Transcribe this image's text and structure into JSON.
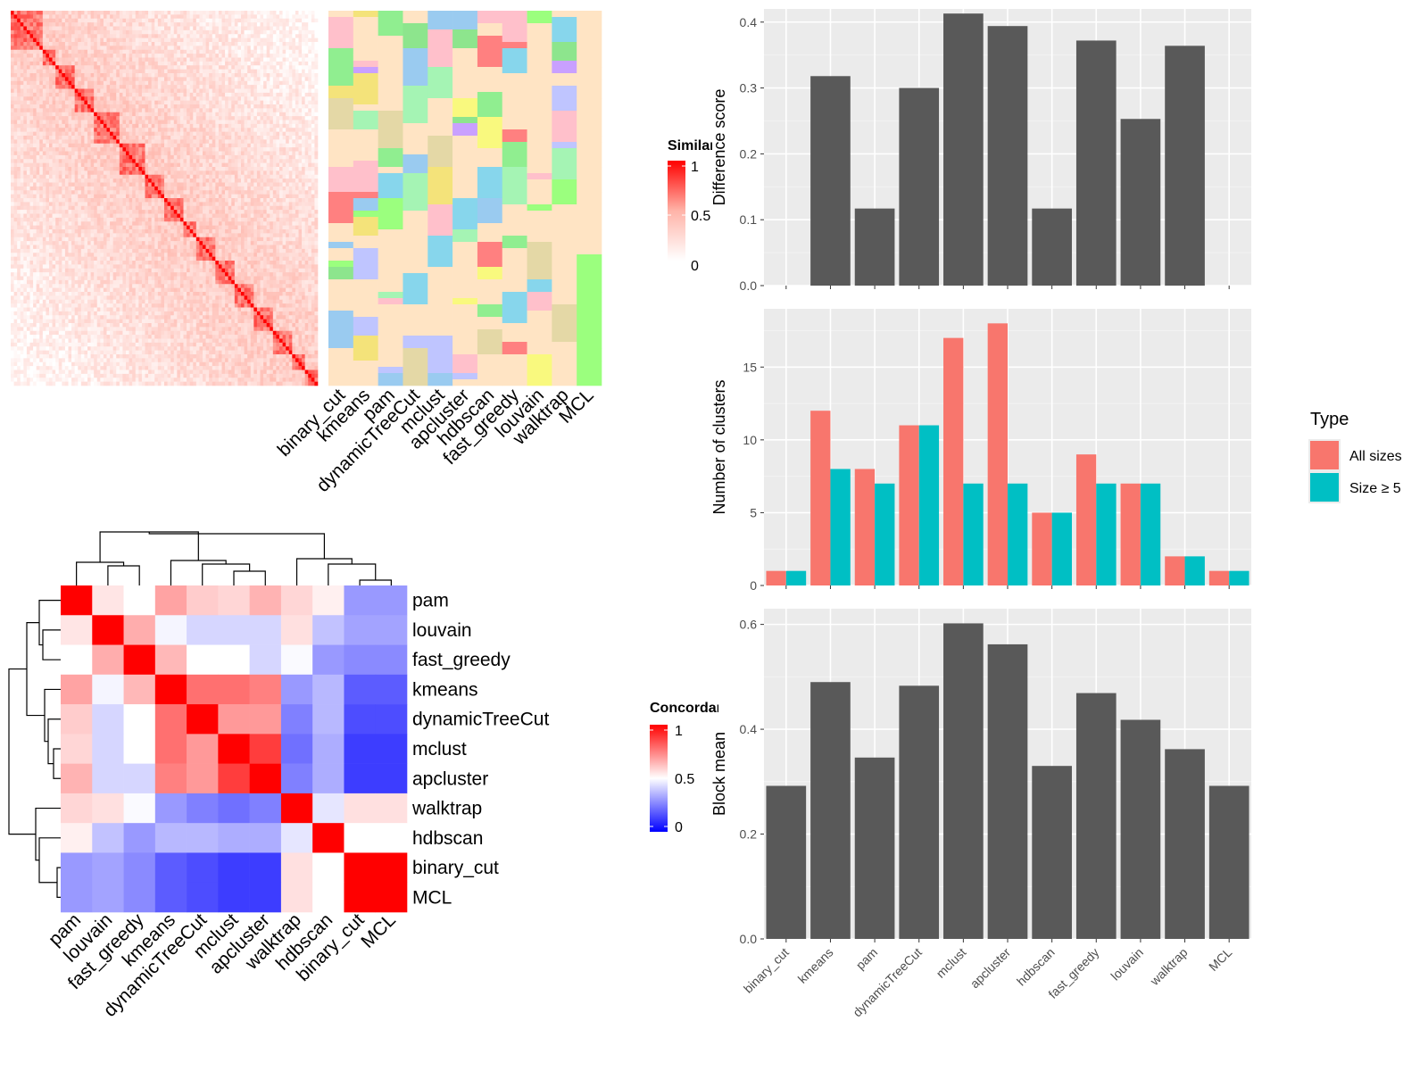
{
  "simmat": {
    "legend_title": "Similarity",
    "legend_ticks": [
      "1",
      "0.5",
      "0"
    ],
    "method_labels": [
      "binary_cut",
      "kmeans",
      "pam",
      "dynamicTreeCut",
      "mclust",
      "apcluster",
      "hdbscan",
      "fast_greedy",
      "louvain",
      "walktrap",
      "MCL"
    ],
    "cluster_colors": [
      "#FFE4C4",
      "#8DE58D",
      "#9BFF7E",
      "#90EE90",
      "#87D6EC",
      "#C9A0FF",
      "#E4D8A6",
      "#F4E37A",
      "#FFC0CB",
      "#BFC5FF",
      "#FF8080",
      "#9ACBF0",
      "#F9F97E",
      "#A5F4B4"
    ]
  },
  "concordance": {
    "legend_title": "Concordance",
    "legend_ticks": [
      "1",
      "0.5",
      "0"
    ],
    "row_labels": [
      "pam",
      "louvain",
      "fast_greedy",
      "kmeans",
      "dynamicTreeCut",
      "mclust",
      "apcluster",
      "walktrap",
      "hdbscan",
      "binary_cut",
      "MCL"
    ],
    "col_labels": [
      "pam",
      "louvain",
      "fast_greedy",
      "kmeans",
      "dynamicTreeCut",
      "mclust",
      "apcluster",
      "walktrap",
      "hdbscan",
      "binary_cut",
      "MCL"
    ],
    "matrix": [
      [
        1.0,
        0.55,
        0.5,
        0.68,
        0.6,
        0.58,
        0.65,
        0.58,
        0.53,
        0.3,
        0.3
      ],
      [
        0.55,
        1.0,
        0.66,
        0.48,
        0.42,
        0.42,
        0.42,
        0.56,
        0.38,
        0.32,
        0.32
      ],
      [
        0.5,
        0.66,
        1.0,
        0.64,
        0.5,
        0.5,
        0.42,
        0.49,
        0.3,
        0.27,
        0.27
      ],
      [
        0.68,
        0.48,
        0.64,
        1.0,
        0.78,
        0.78,
        0.75,
        0.3,
        0.36,
        0.18,
        0.18
      ],
      [
        0.6,
        0.42,
        0.5,
        0.78,
        1.0,
        0.7,
        0.7,
        0.25,
        0.36,
        0.15,
        0.15
      ],
      [
        0.58,
        0.42,
        0.5,
        0.78,
        0.7,
        1.0,
        0.88,
        0.22,
        0.34,
        0.12,
        0.12
      ],
      [
        0.65,
        0.42,
        0.42,
        0.75,
        0.7,
        0.88,
        1.0,
        0.25,
        0.34,
        0.12,
        0.12
      ],
      [
        0.58,
        0.56,
        0.49,
        0.3,
        0.25,
        0.22,
        0.25,
        1.0,
        0.45,
        0.56,
        0.56
      ],
      [
        0.53,
        0.38,
        0.3,
        0.36,
        0.36,
        0.34,
        0.34,
        0.45,
        1.0,
        0.5,
        0.5
      ],
      [
        0.3,
        0.32,
        0.27,
        0.18,
        0.15,
        0.12,
        0.12,
        0.56,
        0.5,
        1.0,
        1.0
      ],
      [
        0.3,
        0.32,
        0.27,
        0.18,
        0.15,
        0.12,
        0.12,
        0.56,
        0.5,
        1.0,
        1.0
      ]
    ]
  },
  "chart_data": [
    {
      "type": "bar",
      "categories": [
        "binary_cut",
        "kmeans",
        "pam",
        "dynamicTreeCut",
        "mclust",
        "apcluster",
        "hdbscan",
        "fast_greedy",
        "louvain",
        "walktrap",
        "MCL"
      ],
      "values": [
        0,
        0.318,
        0.117,
        0.3,
        0.413,
        0.394,
        0.117,
        0.372,
        0.253,
        0.364,
        0
      ],
      "ylabel": "Difference score",
      "xlabel": "",
      "ylim": [
        0,
        0.42
      ],
      "yticks": [
        "0.0",
        "0.1",
        "0.2",
        "0.3",
        "0.4"
      ],
      "bar_color": "#595959",
      "grid": true
    },
    {
      "type": "bar",
      "categories": [
        "binary_cut",
        "kmeans",
        "pam",
        "dynamicTreeCut",
        "mclust",
        "apcluster",
        "hdbscan",
        "fast_greedy",
        "louvain",
        "walktrap",
        "MCL"
      ],
      "series": [
        {
          "name": "All sizes",
          "color": "#F8766D",
          "values": [
            1,
            12,
            8,
            11,
            17,
            18,
            5,
            9,
            7,
            2,
            1
          ]
        },
        {
          "name": "Size ≥ 5",
          "color": "#00BFC4",
          "values": [
            1,
            8,
            7,
            11,
            7,
            7,
            5,
            7,
            7,
            2,
            1
          ]
        }
      ],
      "ylabel": "Number of clusters",
      "xlabel": "",
      "ylim": [
        0,
        19
      ],
      "yticks": [
        "0",
        "5",
        "10",
        "15"
      ],
      "legend_title": "Type",
      "legend_position": "right",
      "grid": true
    },
    {
      "type": "bar",
      "categories": [
        "binary_cut",
        "kmeans",
        "pam",
        "dynamicTreeCut",
        "mclust",
        "apcluster",
        "hdbscan",
        "fast_greedy",
        "louvain",
        "walktrap",
        "MCL"
      ],
      "values": [
        0.292,
        0.49,
        0.346,
        0.483,
        0.602,
        0.562,
        0.33,
        0.469,
        0.418,
        0.362,
        0.292
      ],
      "ylabel": "Block mean",
      "xlabel": "",
      "ylim": [
        0,
        0.63
      ],
      "yticks": [
        "0.0",
        "0.2",
        "0.4",
        "0.6"
      ],
      "bar_color": "#595959",
      "grid": true
    }
  ]
}
